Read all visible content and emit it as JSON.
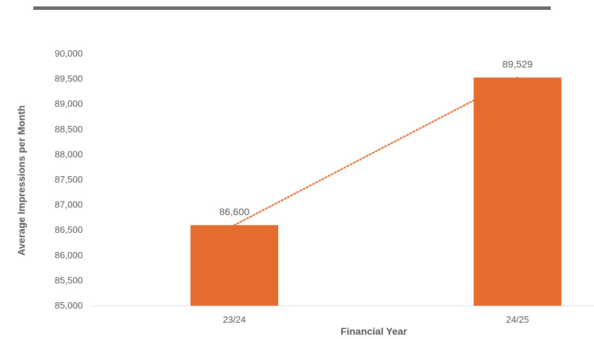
{
  "chart_data": {
    "type": "bar",
    "title": "",
    "xlabel": "Financial Year",
    "ylabel": "Average Impressions per Month",
    "categories": [
      "23/24",
      "24/25"
    ],
    "values": [
      86600,
      89529
    ],
    "data_labels": [
      "86,600",
      "89,529"
    ],
    "ylim": [
      85000,
      90000
    ],
    "yticks": [
      85000,
      85500,
      86000,
      86500,
      87000,
      87500,
      88000,
      88500,
      89000,
      89500,
      90000
    ],
    "ytick_labels": [
      "85,000",
      "85,500",
      "86,000",
      "86,500",
      "87,000",
      "87,500",
      "88,000",
      "88,500",
      "89,000",
      "89,500",
      "90,000"
    ],
    "grid": false,
    "trendline": {
      "style": "dotted",
      "type": "linear"
    },
    "colors": {
      "bar": "#E46C2F",
      "trendline": "#E46C2F",
      "text": "#595959",
      "axis": "#D9D9D9",
      "top_rule": "#6B6B6B"
    }
  }
}
